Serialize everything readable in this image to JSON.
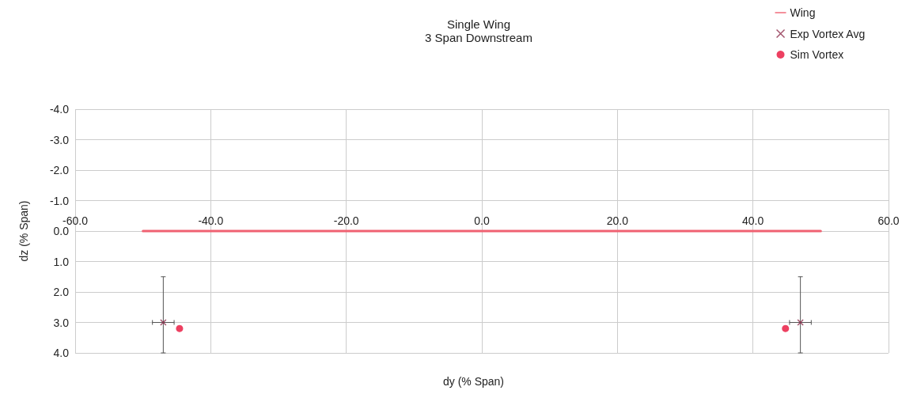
{
  "chart_data": {
    "type": "scatter",
    "title": "Single Wing",
    "subtitle": "3 Span Downstream",
    "xlabel": "dy (% Span)",
    "ylabel": "dz (% Span)",
    "xlim": [
      -60,
      60
    ],
    "xticks": [
      {
        "value": -60,
        "label": "-60.0"
      },
      {
        "value": -40,
        "label": "-40.0"
      },
      {
        "value": -20,
        "label": "-20.0"
      },
      {
        "value": 0,
        "label": "0.0"
      },
      {
        "value": 20,
        "label": "20.0"
      },
      {
        "value": 40,
        "label": "40.0"
      },
      {
        "value": 60,
        "label": "60.0"
      }
    ],
    "ylim": [
      4,
      -4
    ],
    "yticks": [
      {
        "value": -4,
        "label": "-4.0"
      },
      {
        "value": -3,
        "label": "-3.0"
      },
      {
        "value": -2,
        "label": "-2.0"
      },
      {
        "value": -1,
        "label": "-1.0"
      },
      {
        "value": 0,
        "label": "0.0"
      },
      {
        "value": 1,
        "label": "1.0"
      },
      {
        "value": 2,
        "label": "2.0"
      },
      {
        "value": 3,
        "label": "3.0"
      },
      {
        "value": 4,
        "label": "4.0"
      }
    ],
    "grid": true,
    "legend": "top right",
    "series": [
      {
        "name": "Wing",
        "type": "line",
        "color": "#f06272",
        "marker": "none",
        "x": [
          -50,
          50
        ],
        "values": [
          0,
          0
        ]
      },
      {
        "name": "Exp Vortex Avg",
        "color": "#8c2a4a",
        "marker": "cross",
        "x": [
          -47,
          47
        ],
        "values": [
          3.0,
          3.0
        ],
        "errors": [
          [
            1.5,
            4.0
          ],
          [
            1.5,
            4.0
          ]
        ],
        "xerrors": [
          1.6,
          1.6
        ]
      },
      {
        "name": "Sim Vortex",
        "color": "#e8103a",
        "marker": "circle",
        "x": [
          -44.6,
          44.8
        ],
        "values": [
          3.2,
          3.2
        ]
      }
    ]
  }
}
